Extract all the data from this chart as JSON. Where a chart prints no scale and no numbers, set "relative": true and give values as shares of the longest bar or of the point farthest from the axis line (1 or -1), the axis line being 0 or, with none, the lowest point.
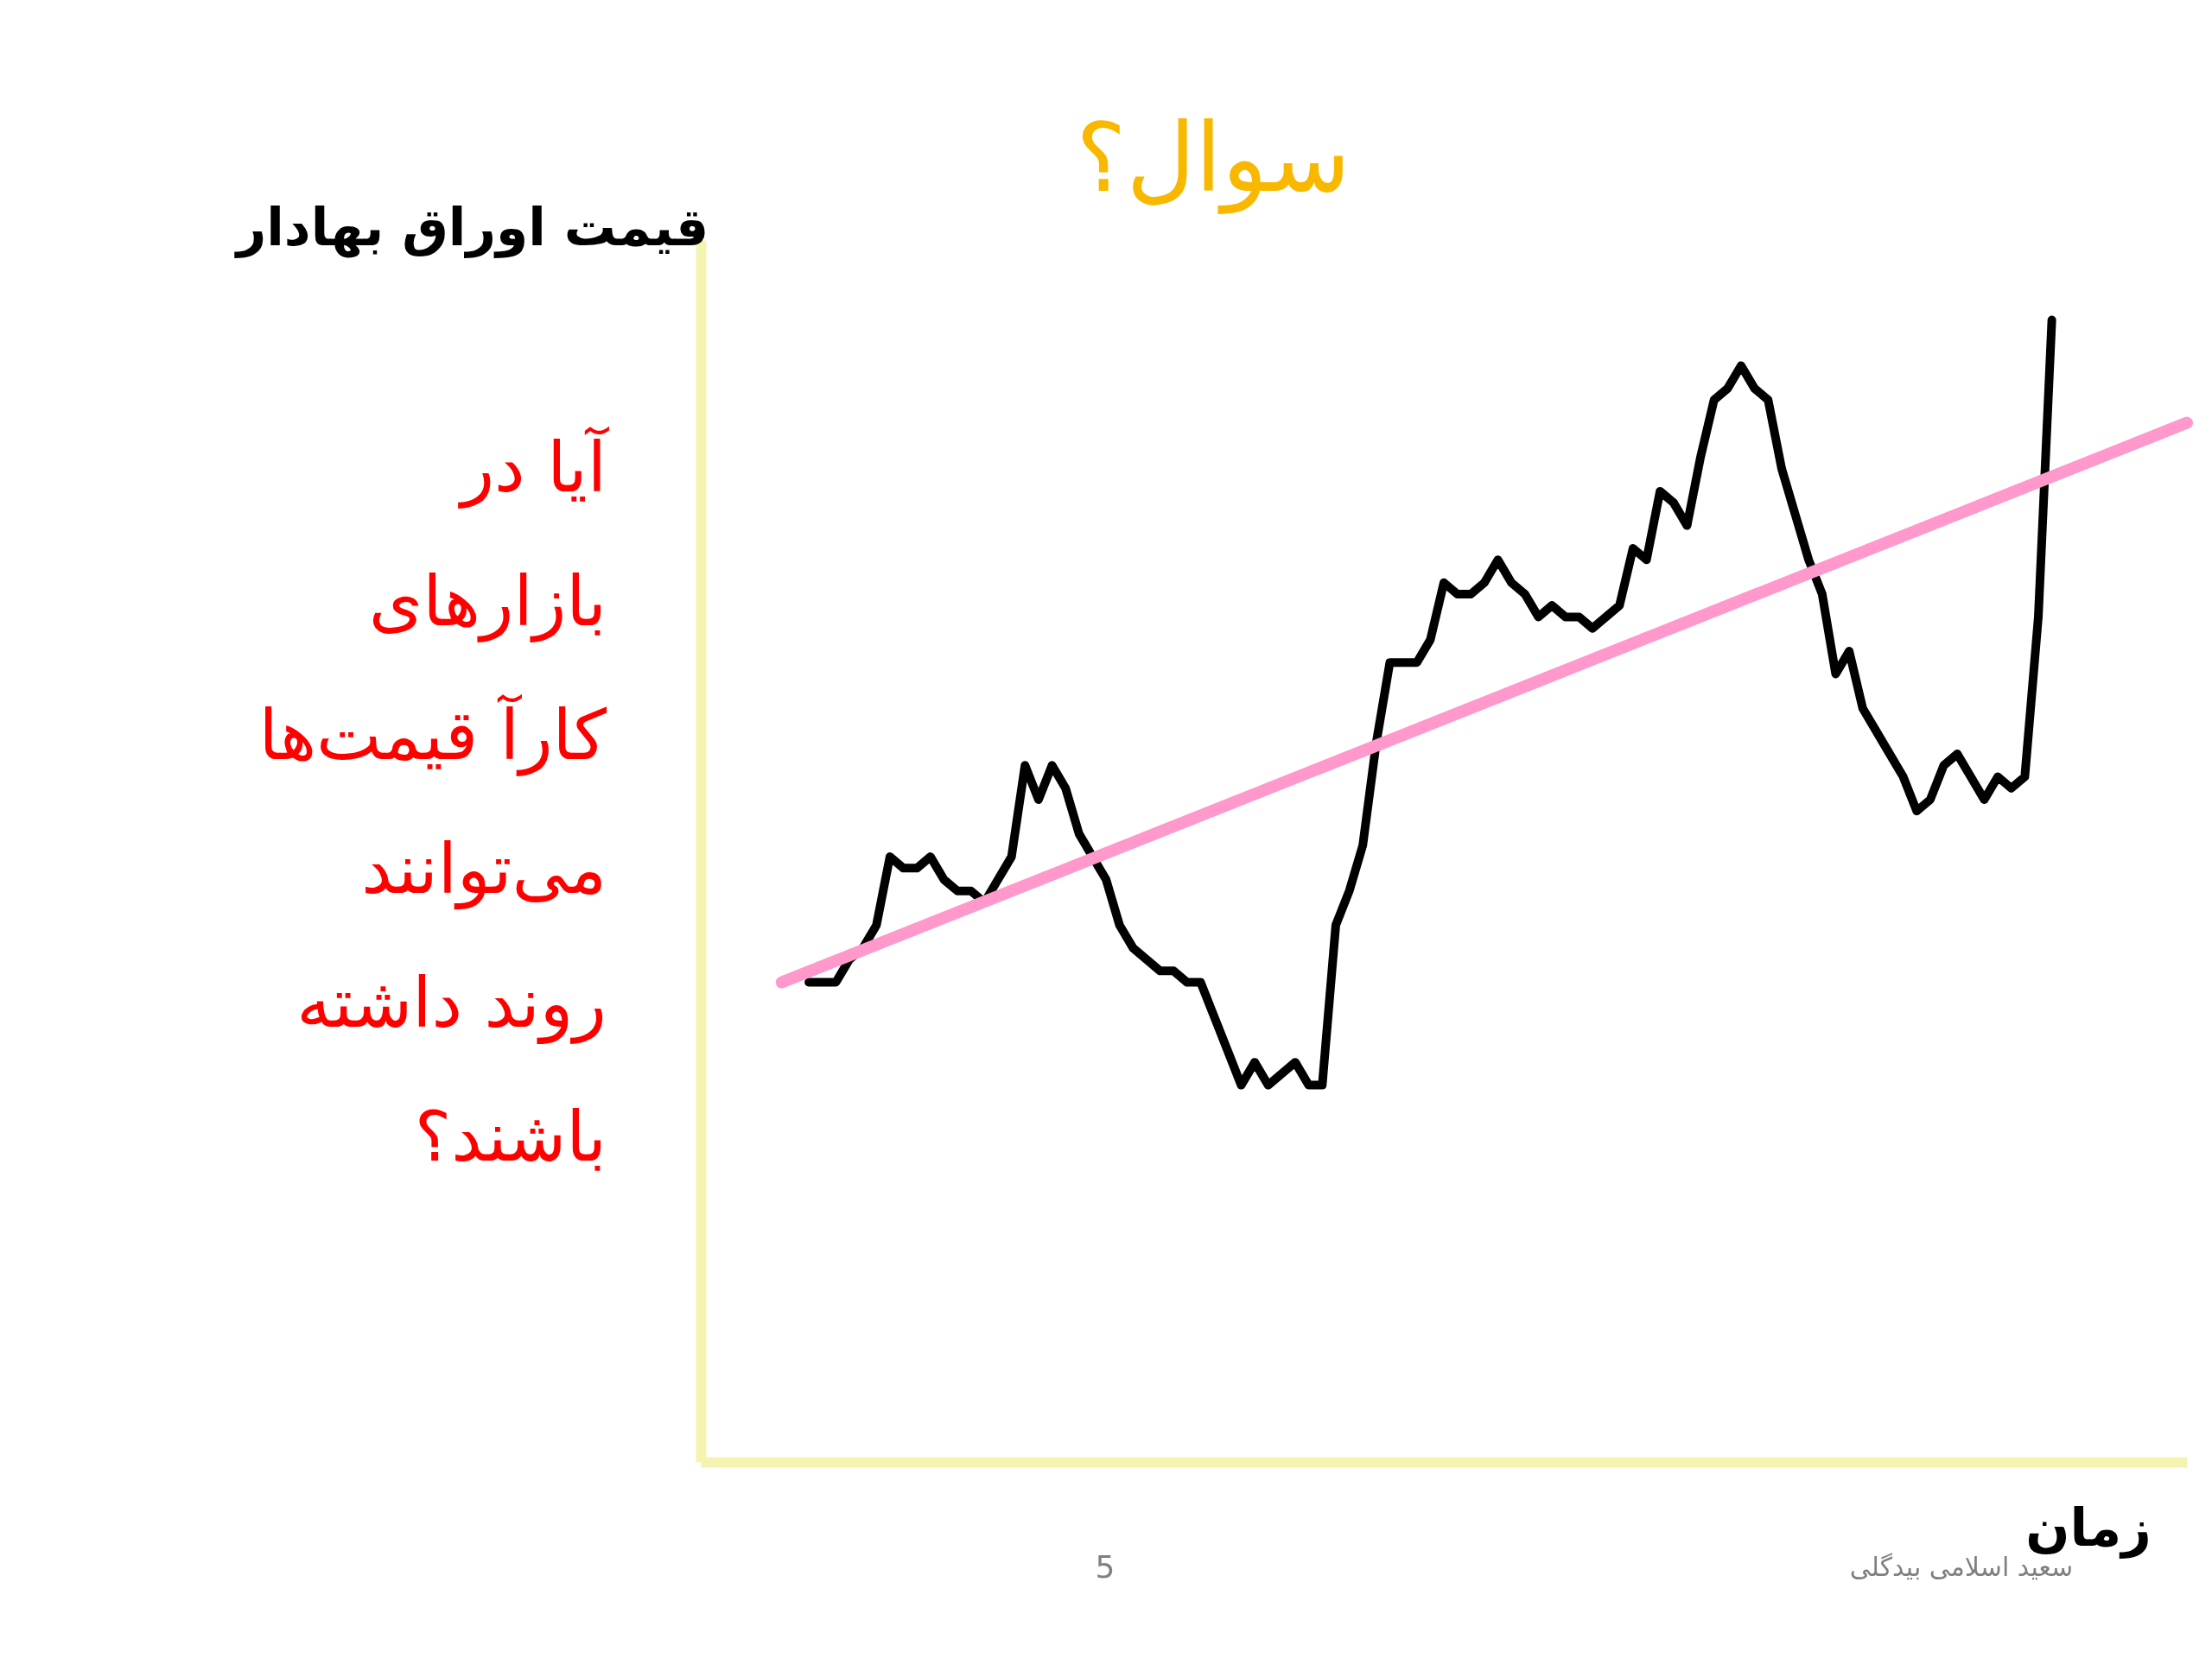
{
  "chart_data": {
    "type": "line",
    "relative": true,
    "title": "سوال؟",
    "ylabel": "قیمت اوراق بهادار",
    "xlabel": "زمان",
    "grid": false,
    "line_style": "solid",
    "categories": [
      null,
      null,
      null,
      null,
      null,
      null,
      null,
      null,
      null,
      null,
      null,
      null,
      null,
      null,
      null,
      null,
      null,
      null,
      null,
      null,
      null,
      null,
      null,
      null,
      null,
      null,
      null,
      null,
      null,
      null,
      null,
      null,
      null,
      null,
      null,
      null,
      null,
      null,
      null,
      null,
      null,
      null,
      null,
      null,
      null,
      null,
      null,
      null,
      null,
      null,
      null,
      null,
      null,
      null,
      null,
      null,
      null,
      null,
      null,
      null,
      null,
      null,
      null,
      null,
      null,
      null,
      null,
      null,
      null,
      null,
      null,
      null,
      null,
      null,
      null,
      null,
      null,
      null,
      null,
      null,
      null,
      null,
      null,
      null,
      null,
      null,
      null,
      null,
      null,
      null,
      null,
      null,
      null,
      null,
      null,
      null,
      null,
      null,
      null,
      null,
      null,
      null,
      null,
      null,
      null
    ],
    "series": [
      {
        "color": "#000000",
        "values": [
          null,
          null,
          0.42,
          0.42,
          0.42,
          0.44,
          0.45,
          0.47,
          0.53,
          0.52,
          0.52,
          0.53,
          0.51,
          0.5,
          0.5,
          0.49,
          0.51,
          0.53,
          0.61,
          0.58,
          0.61,
          0.59,
          0.55,
          0.53,
          0.51,
          0.47,
          0.45,
          0.44,
          0.43,
          0.43,
          0.42,
          0.42,
          0.39,
          0.36,
          0.33,
          0.35,
          0.33,
          0.34,
          0.35,
          0.33,
          0.33,
          0.47,
          0.5,
          0.54,
          0.63,
          0.7,
          0.7,
          0.7,
          0.72,
          0.77,
          0.76,
          0.76,
          0.77,
          0.79,
          0.77,
          0.76,
          0.74,
          0.75,
          0.74,
          0.74,
          0.73,
          0.74,
          0.75,
          0.8,
          0.79,
          0.85,
          0.84,
          0.82,
          0.88,
          0.93,
          0.94,
          0.96,
          0.94,
          0.93,
          0.87,
          0.83,
          0.79,
          0.76,
          0.69,
          0.71,
          0.66,
          0.64,
          0.62,
          0.6,
          0.57,
          0.58,
          0.61,
          0.62,
          0.6,
          0.58,
          0.6,
          0.59,
          0.6,
          0.74,
          1.0,
          null,
          null,
          null,
          null,
          null,
          null,
          null,
          null,
          null,
          null
        ]
      },
      {
        "color": "#ff99cc",
        "values": [
          0.42,
          null,
          null,
          null,
          null,
          null,
          null,
          null,
          null,
          null,
          null,
          null,
          null,
          null,
          null,
          null,
          null,
          null,
          null,
          null,
          null,
          null,
          null,
          null,
          null,
          null,
          null,
          null,
          null,
          null,
          null,
          null,
          null,
          null,
          null,
          null,
          null,
          null,
          null,
          null,
          null,
          null,
          null,
          null,
          null,
          null,
          null,
          null,
          null,
          null,
          null,
          null,
          null,
          null,
          null,
          null,
          null,
          null,
          null,
          null,
          null,
          null,
          null,
          null,
          null,
          null,
          null,
          null,
          null,
          null,
          null,
          null,
          null,
          null,
          null,
          null,
          null,
          null,
          null,
          null,
          null,
          null,
          null,
          null,
          null,
          null,
          null,
          null,
          null,
          null,
          null,
          null,
          null,
          null,
          null,
          null,
          null,
          null,
          null,
          null,
          null,
          null,
          null,
          null,
          0.91
        ]
      }
    ],
    "annotations": [
      "آیا در\nبازارهای\nکارآ قیمت‌ها\nمی‌توانند\nروند داشته\nباشند؟",
      "5",
      "سعید اسلامی بیدگلی"
    ]
  }
}
